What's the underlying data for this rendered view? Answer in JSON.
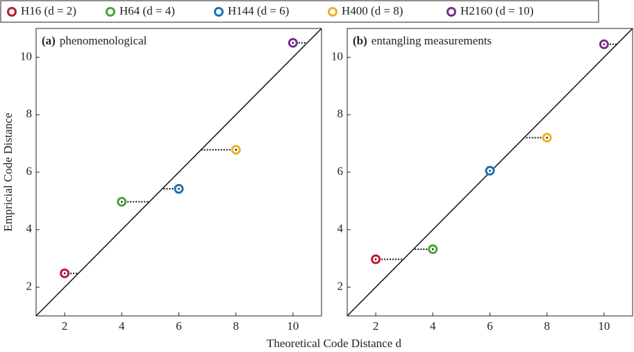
{
  "legend": [
    {
      "name": "H16 (d = 2)",
      "color": "#c0182e"
    },
    {
      "name": "H64 (d = 4)",
      "color": "#4aa23a"
    },
    {
      "name": "H144 (d = 6)",
      "color": "#1a72b8"
    },
    {
      "name": "H400 (d = 8)",
      "color": "#f0b020"
    },
    {
      "name": "H2160 (d = 10)",
      "color": "#7b2d8e"
    }
  ],
  "xlabel": "Theoretical Code Distance d",
  "ylabel": "Empricial Code Distance",
  "chart_data": [
    {
      "type": "scatter",
      "panel_label": "(a)",
      "title": "phenomenological",
      "x": [
        2,
        4,
        6,
        8,
        10
      ],
      "values": [
        2.48,
        4.97,
        5.42,
        6.78,
        10.5
      ],
      "xlim": [
        1,
        11
      ],
      "ylim": [
        1,
        11
      ],
      "xticks": [
        2,
        4,
        6,
        8,
        10
      ],
      "yticks": [
        2,
        4,
        6,
        8,
        10
      ],
      "diagonal": true
    },
    {
      "type": "scatter",
      "panel_label": "(b)",
      "title": "entangling measurements",
      "x": [
        2,
        4,
        6,
        8,
        10
      ],
      "values": [
        2.97,
        3.32,
        6.05,
        7.2,
        10.45
      ],
      "xlim": [
        1,
        11
      ],
      "ylim": [
        1,
        11
      ],
      "xticks": [
        2,
        4,
        6,
        8,
        10
      ],
      "yticks": [
        2,
        4,
        6,
        8,
        10
      ],
      "diagonal": true
    }
  ]
}
